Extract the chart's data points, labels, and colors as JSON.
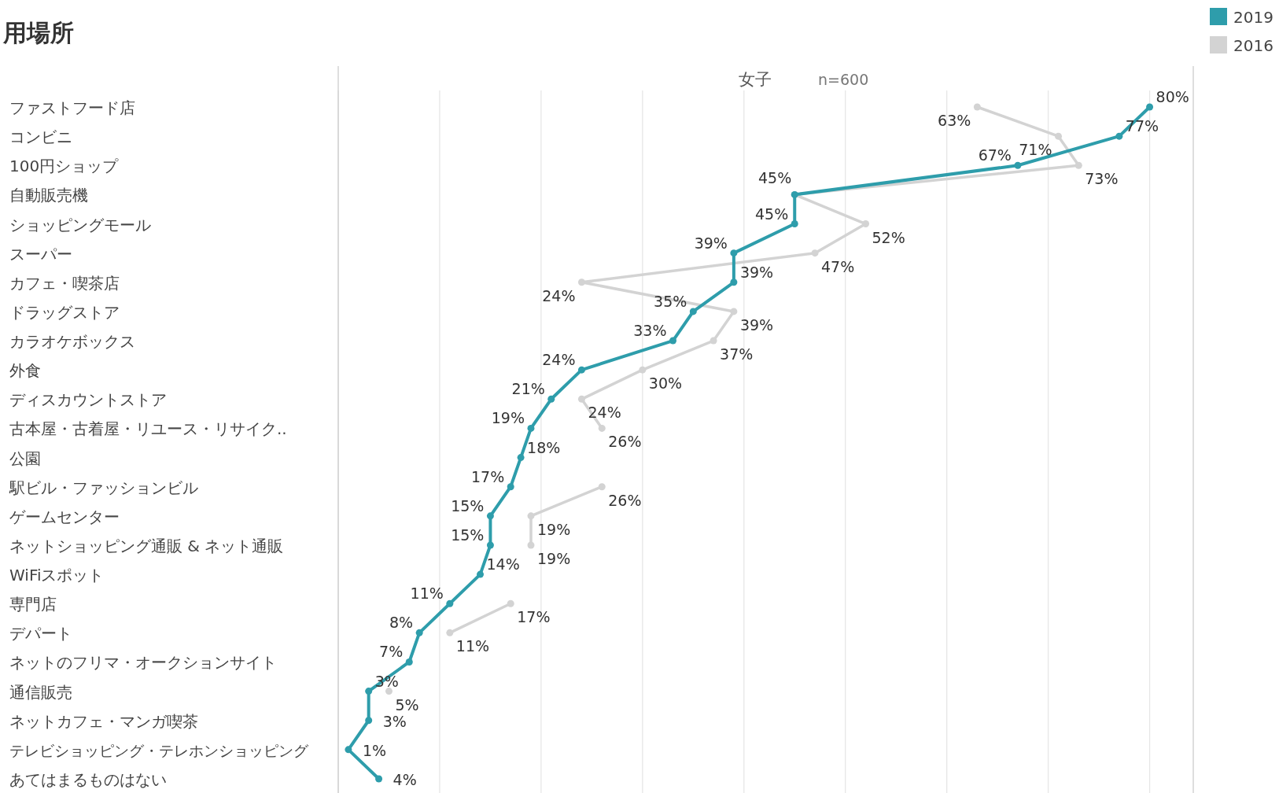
{
  "chart_data": {
    "type": "line",
    "orientation": "horizontal",
    "title": "用場所",
    "subtitle": "女子",
    "annotations": [
      "n=600"
    ],
    "categories": [
      "ファストフード店",
      "コンビニ",
      "100円ショップ",
      "自動販売機",
      "ショッピングモール",
      "スーパー",
      "カフェ・喫茶店",
      "ドラッグストア",
      "カラオケボックス",
      "外食",
      "ディスカウントストア",
      "古本屋・古着屋・リユース・リサイク..",
      "公園",
      "駅ビル・ファッションビル",
      "ゲームセンター",
      "ネットショッピング通販 & ネット通販",
      "WiFiスポット",
      "専門店",
      "デパート",
      "ネットのフリマ・オークションサイト",
      "通信販売",
      "ネットカフェ・マンガ喫茶",
      "テレビショッピング・テレホンショッピング",
      "あてはまるものはない"
    ],
    "series": [
      {
        "name": "2019",
        "color": "#2e9dab",
        "values": [
          80,
          77,
          67,
          45,
          45,
          39,
          39,
          35,
          33,
          24,
          21,
          19,
          18,
          17,
          15,
          15,
          14,
          11,
          8,
          7,
          3,
          3,
          1,
          4
        ],
        "value_labels": [
          "80%",
          "77%",
          "67%",
          "45%",
          "45%",
          "39%",
          "39%",
          "35%",
          "33%",
          "24%",
          "21%",
          "19%",
          "18%",
          "17%",
          "15%",
          "15%",
          "14%",
          "11%",
          "8%",
          "7%",
          "3%",
          "3%",
          "1%",
          "4%"
        ]
      },
      {
        "name": "2016",
        "color": "#d3d3d3",
        "values": [
          63,
          71,
          73,
          45,
          52,
          47,
          24,
          39,
          37,
          30,
          24,
          26,
          null,
          26,
          19,
          19,
          null,
          17,
          11,
          null,
          5,
          null,
          null,
          null
        ],
        "value_labels": [
          "63%",
          "71%",
          "73%",
          null,
          "52%",
          "47%",
          "24%",
          "39%",
          "37%",
          "30%",
          "24%",
          "26%",
          null,
          "26%",
          "19%",
          "19%",
          null,
          "17%",
          "11%",
          null,
          "5%",
          null,
          null,
          null
        ]
      }
    ],
    "xlim": [
      0,
      84.3
    ],
    "xticks": [
      {
        "value": 0,
        "label": null
      },
      {
        "value": 10,
        "label": null
      },
      {
        "value": 20,
        "label": null
      },
      {
        "value": 30,
        "label": null
      },
      {
        "value": 40,
        "label": null
      },
      {
        "value": 50,
        "label": null
      },
      {
        "value": 60,
        "label": null
      },
      {
        "value": 70,
        "label": null
      },
      {
        "value": 80,
        "label": null
      }
    ],
    "grid": "x",
    "legend": "top right",
    "marker": "circle",
    "line_style": "solid"
  }
}
